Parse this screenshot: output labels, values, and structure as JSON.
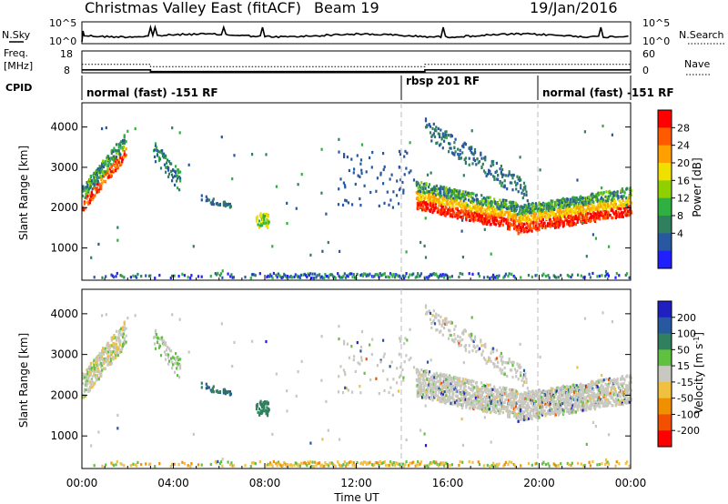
{
  "header": {
    "station": "Christmas Valley East (fitACF)",
    "beam": "Beam 19",
    "date": "19/Jan/2016"
  },
  "nsky_panel": {
    "left_label": "N.Sky",
    "right_label": "N.Search",
    "y_ticks": [
      "10^5",
      "10^0"
    ],
    "right_ticks": [
      "10^5",
      "10^0"
    ]
  },
  "freq_panel": {
    "left_label_1": "Freq.",
    "left_label_2": "[MHz]",
    "right_label": "Nave",
    "left_ticks": [
      "18",
      "8"
    ],
    "right_ticks": [
      "60",
      "0"
    ],
    "freq_steps": [
      [
        0.0,
        11.0
      ],
      [
        3.0,
        10.2
      ],
      [
        15.0,
        11.0
      ],
      [
        24.0,
        11.0
      ]
    ],
    "nave_steps": [
      [
        0.0,
        23
      ],
      [
        3.0,
        17
      ],
      [
        15.0,
        23
      ],
      [
        24.0,
        23
      ]
    ]
  },
  "cpid": {
    "label": "CPID",
    "segments": [
      {
        "start": 0.0,
        "label": "normal (fast) -151 RF"
      },
      {
        "start": 14.0,
        "label": "rbsp 201 RF"
      },
      {
        "start": 20.0,
        "label": "normal (fast) -151 RF"
      }
    ]
  },
  "chart_data": [
    {
      "type": "heatmap",
      "name": "power",
      "xlabel": "",
      "ylabel": "Slant Range [km]",
      "xlim": [
        0,
        24
      ],
      "ylim": [
        200,
        4600
      ],
      "y_ticks": [
        1000,
        2000,
        3000,
        4000
      ],
      "colorbar": {
        "label": "Power [dB]",
        "tick_values": [
          28,
          24,
          20,
          16,
          12,
          8,
          4
        ],
        "colors": [
          "#ff0000",
          "#ff5a00",
          "#ffa000",
          "#f0e000",
          "#90d000",
          "#30b040",
          "#308060",
          "#2858a0",
          "#2020ff"
        ]
      },
      "features": [
        {
          "t0": 0.0,
          "t1": 1.9,
          "r0": 2000,
          "r1": 3700,
          "note": "upper band"
        },
        {
          "t0": 3.1,
          "t1": 4.3,
          "r0": 2600,
          "r1": 3500
        },
        {
          "t0": 5.2,
          "t1": 6.5,
          "r0": 1900,
          "r1": 2300
        },
        {
          "t0": 7.6,
          "t1": 8.2,
          "r0": 1400,
          "r1": 1900
        },
        {
          "t0": 14.6,
          "t1": 24.0,
          "r0": 1300,
          "r1": 2500,
          "note": "main echo band"
        },
        {
          "t0": 15.0,
          "t1": 19.5,
          "r0": 2500,
          "r1": 4000
        }
      ]
    },
    {
      "type": "heatmap",
      "name": "velocity",
      "xlabel": "Time UT",
      "ylabel": "Slant Range [km]",
      "xlim": [
        0,
        24
      ],
      "ylim": [
        200,
        4600
      ],
      "y_ticks": [
        1000,
        2000,
        3000,
        4000
      ],
      "x_ticks": [
        "00:00",
        "04:00",
        "08:00",
        "12:00",
        "16:00",
        "20:00",
        "00:00"
      ],
      "colorbar": {
        "label": "Velocity [m s^-1]",
        "tick_values": [
          200,
          100,
          50,
          15,
          -15,
          -50,
          -100,
          -200
        ],
        "colors": [
          "#2020c0",
          "#2858a0",
          "#308060",
          "#60c040",
          "#c8c8c0",
          "#f0c040",
          "#f09000",
          "#f05000",
          "#ff0000"
        ]
      }
    }
  ]
}
